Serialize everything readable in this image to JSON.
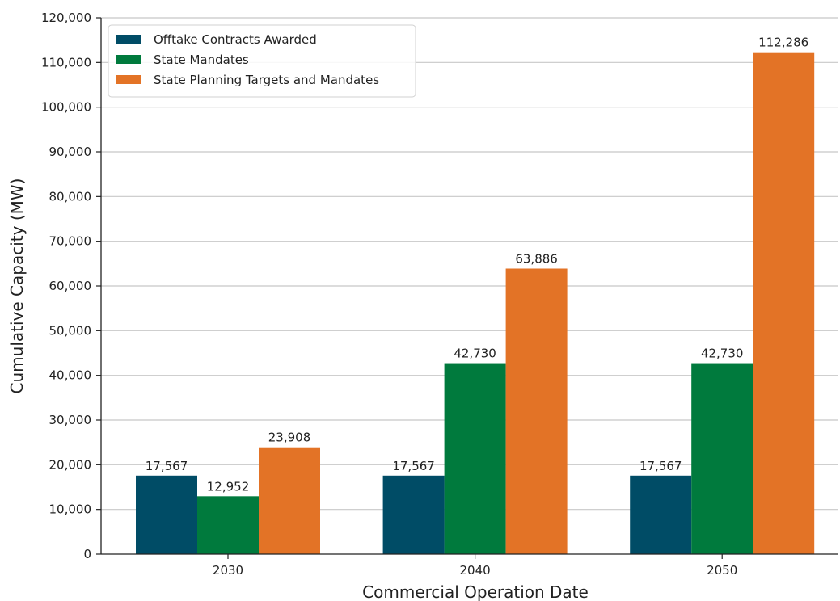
{
  "chart_data": {
    "type": "bar",
    "title": "",
    "xlabel": "Commercial Operation Date",
    "ylabel": "Cumulative Capacity (MW)",
    "categories": [
      "2030",
      "2040",
      "2050"
    ],
    "series": [
      {
        "name": "Offtake Contracts Awarded",
        "values": [
          17567,
          17567,
          17567
        ],
        "labels": [
          "17,567",
          "17,567",
          "17,567"
        ],
        "color": "#004c66"
      },
      {
        "name": "State Mandates",
        "values": [
          12952,
          42730,
          42730
        ],
        "labels": [
          "12,952",
          "42,730",
          "42,730"
        ],
        "color": "#007a3d"
      },
      {
        "name": "State Planning Targets and Mandates",
        "values": [
          23908,
          63886,
          112286
        ],
        "labels": [
          "23,908",
          "63,886",
          "112,286"
        ],
        "color": "#e37326"
      }
    ],
    "ylim": [
      0,
      120000
    ],
    "yticks": [
      0,
      10000,
      20000,
      30000,
      40000,
      50000,
      60000,
      70000,
      80000,
      90000,
      100000,
      110000,
      120000
    ],
    "ytick_labels": [
      "0",
      "10,000",
      "20,000",
      "30,000",
      "40,000",
      "50,000",
      "60,000",
      "70,000",
      "80,000",
      "90,000",
      "100,000",
      "110,000",
      "120,000"
    ],
    "grid": "horizontal",
    "grid_color": "#c8c8c8",
    "legend_position": "top-left"
  }
}
